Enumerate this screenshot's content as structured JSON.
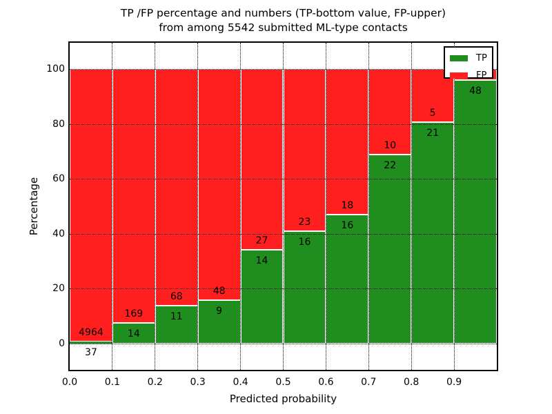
{
  "chart_data": {
    "type": "bar",
    "stacked": true,
    "title": "TP /FP percentage and numbers (TP-bottom value, FP-upper)",
    "subtitle": "from among 5542 submitted ML-type contacts",
    "xlabel": "Predicted probability",
    "ylabel": "Percentage",
    "xlim": [
      0.0,
      1.0
    ],
    "ylim": [
      -10,
      110
    ],
    "yticks": [
      0,
      20,
      40,
      60,
      80,
      100
    ],
    "xtick_labels": [
      "0.0",
      "0.1",
      "0.2",
      "0.3",
      "0.4",
      "0.5",
      "0.6",
      "0.7",
      "0.8",
      "0.9"
    ],
    "grid_style": "dotted",
    "legend_position": "upper-right",
    "series": [
      {
        "name": "TP",
        "color": "#1f8e1f"
      },
      {
        "name": "FP",
        "color": "#ff1f1f"
      }
    ],
    "bins": [
      {
        "range": [
          0.0,
          0.1
        ],
        "tp_count": 37,
        "fp_count": 4964,
        "tp_percent": 0.74
      },
      {
        "range": [
          0.1,
          0.2
        ],
        "tp_count": 14,
        "fp_count": 169,
        "tp_percent": 7.65
      },
      {
        "range": [
          0.2,
          0.3
        ],
        "tp_count": 11,
        "fp_count": 68,
        "tp_percent": 13.92
      },
      {
        "range": [
          0.3,
          0.4
        ],
        "tp_count": 9,
        "fp_count": 48,
        "tp_percent": 15.79
      },
      {
        "range": [
          0.4,
          0.5
        ],
        "tp_count": 14,
        "fp_count": 27,
        "tp_percent": 34.15
      },
      {
        "range": [
          0.5,
          0.6
        ],
        "tp_count": 16,
        "fp_count": 23,
        "tp_percent": 41.03
      },
      {
        "range": [
          0.6,
          0.7
        ],
        "tp_count": 16,
        "fp_count": 18,
        "tp_percent": 47.06
      },
      {
        "range": [
          0.7,
          0.8
        ],
        "tp_count": 22,
        "fp_count": 10,
        "tp_percent": 68.75
      },
      {
        "range": [
          0.8,
          0.9
        ],
        "tp_count": 21,
        "fp_count": 5,
        "tp_percent": 80.77
      },
      {
        "range": [
          0.9,
          1.0
        ],
        "tp_count": 48,
        "fp_count": null,
        "tp_percent": 96.0,
        "fp_label_hidden_by_legend": true
      }
    ]
  }
}
